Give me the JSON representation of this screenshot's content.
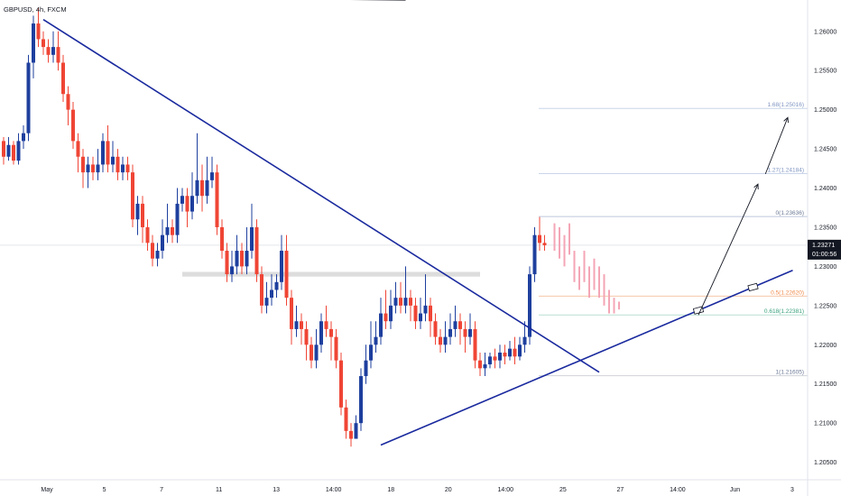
{
  "symbol_label": "GBPUSD, 4h, FXCM",
  "colors": {
    "bull": "#1e3f9e",
    "bear": "#ef4535",
    "projection": "#f4a6b6",
    "trendline": "#1a2a9e",
    "fib_0": "#bfc8dd",
    "fib_0_5": "#f7c7a9",
    "fib_0_618": "#b8e0d0",
    "fib_1": "#cfd3da",
    "fib_1_27": "#c9d5ea",
    "fib_1_68": "#c9d5ea",
    "price_tag": "#131722",
    "zone": "#d9d9d9"
  },
  "chart_data": {
    "type": "candlestick",
    "interval": "4h",
    "x_ticks": [
      "May",
      "5",
      "7",
      "11",
      "13",
      "14:00",
      "18",
      "20",
      "14:00",
      "25",
      "27",
      "14:00",
      "Jun",
      "3"
    ],
    "y_ticks": [
      "1.26000",
      "1.25500",
      "1.25000",
      "1.24500",
      "1.24000",
      "1.23500",
      "1.23000",
      "1.22500",
      "1.22000",
      "1.21500",
      "1.21000",
      "1.20500"
    ],
    "ylim": [
      1.203,
      1.264
    ],
    "last_price": "1.23271",
    "countdown": "01:00:56",
    "candles": [
      [
        1.246,
        1.244,
        1.2465,
        1.243
      ],
      [
        1.244,
        1.2455,
        1.2465,
        1.2435
      ],
      [
        1.2455,
        1.2435,
        1.246,
        1.243
      ],
      [
        1.2435,
        1.246,
        1.247,
        1.243
      ],
      [
        1.246,
        1.247,
        1.248,
        1.245
      ],
      [
        1.247,
        1.256,
        1.257,
        1.246
      ],
      [
        1.256,
        1.261,
        1.262,
        1.254
      ],
      [
        1.261,
        1.259,
        1.263,
        1.258
      ],
      [
        1.259,
        1.258,
        1.26,
        1.257
      ],
      [
        1.258,
        1.257,
        1.259,
        1.256
      ],
      [
        1.257,
        1.258,
        1.26,
        1.256
      ],
      [
        1.258,
        1.256,
        1.26,
        1.255
      ],
      [
        1.256,
        1.252,
        1.257,
        1.251
      ],
      [
        1.252,
        1.25,
        1.253,
        1.248
      ],
      [
        1.25,
        1.246,
        1.251,
        1.245
      ],
      [
        1.246,
        1.244,
        1.247,
        1.242
      ],
      [
        1.244,
        1.242,
        1.245,
        1.24
      ],
      [
        1.242,
        1.243,
        1.244,
        1.24
      ],
      [
        1.243,
        1.242,
        1.244,
        1.241
      ],
      [
        1.242,
        1.243,
        1.245,
        1.241
      ],
      [
        1.243,
        1.246,
        1.247,
        1.242
      ],
      [
        1.246,
        1.243,
        1.248,
        1.242
      ],
      [
        1.243,
        1.244,
        1.246,
        1.242
      ],
      [
        1.244,
        1.242,
        1.245,
        1.241
      ],
      [
        1.242,
        1.243,
        1.244,
        1.241
      ],
      [
        1.243,
        1.242,
        1.244,
        1.241
      ],
      [
        1.242,
        1.236,
        1.243,
        1.235
      ],
      [
        1.236,
        1.238,
        1.239,
        1.234
      ],
      [
        1.238,
        1.235,
        1.239,
        1.233
      ],
      [
        1.235,
        1.233,
        1.236,
        1.232
      ],
      [
        1.233,
        1.231,
        1.234,
        1.23
      ],
      [
        1.231,
        1.232,
        1.233,
        1.23
      ],
      [
        1.232,
        1.234,
        1.236,
        1.231
      ],
      [
        1.234,
        1.235,
        1.238,
        1.233
      ],
      [
        1.235,
        1.234,
        1.236,
        1.233
      ],
      [
        1.234,
        1.238,
        1.24,
        1.233
      ],
      [
        1.238,
        1.239,
        1.24,
        1.237
      ],
      [
        1.239,
        1.237,
        1.24,
        1.235
      ],
      [
        1.237,
        1.239,
        1.242,
        1.236
      ],
      [
        1.239,
        1.241,
        1.247,
        1.238
      ],
      [
        1.241,
        1.239,
        1.243,
        1.237
      ],
      [
        1.239,
        1.241,
        1.244,
        1.238
      ],
      [
        1.241,
        1.242,
        1.244,
        1.24
      ],
      [
        1.242,
        1.235,
        1.243,
        1.234
      ],
      [
        1.235,
        1.232,
        1.236,
        1.231
      ],
      [
        1.232,
        1.229,
        1.233,
        1.228
      ],
      [
        1.229,
        1.23,
        1.232,
        1.228
      ],
      [
        1.23,
        1.232,
        1.234,
        1.229
      ],
      [
        1.232,
        1.23,
        1.233,
        1.229
      ],
      [
        1.23,
        1.232,
        1.235,
        1.229
      ],
      [
        1.232,
        1.235,
        1.238,
        1.231
      ],
      [
        1.235,
        1.229,
        1.236,
        1.228
      ],
      [
        1.229,
        1.225,
        1.23,
        1.224
      ],
      [
        1.225,
        1.226,
        1.228,
        1.224
      ],
      [
        1.226,
        1.227,
        1.229,
        1.225
      ],
      [
        1.227,
        1.228,
        1.229,
        1.226
      ],
      [
        1.228,
        1.232,
        1.234,
        1.227
      ],
      [
        1.232,
        1.226,
        1.234,
        1.225
      ],
      [
        1.226,
        1.222,
        1.227,
        1.22
      ],
      [
        1.222,
        1.223,
        1.225,
        1.221
      ],
      [
        1.223,
        1.222,
        1.224,
        1.22
      ],
      [
        1.222,
        1.22,
        1.223,
        1.218
      ],
      [
        1.22,
        1.218,
        1.221,
        1.217
      ],
      [
        1.218,
        1.22,
        1.222,
        1.217
      ],
      [
        1.22,
        1.223,
        1.224,
        1.219
      ],
      [
        1.223,
        1.222,
        1.225,
        1.221
      ],
      [
        1.222,
        1.221,
        1.223,
        1.218
      ],
      [
        1.221,
        1.218,
        1.222,
        1.217
      ],
      [
        1.218,
        1.212,
        1.219,
        1.211
      ],
      [
        1.212,
        1.209,
        1.213,
        1.208
      ],
      [
        1.209,
        1.208,
        1.21,
        1.207
      ],
      [
        1.208,
        1.21,
        1.211,
        1.208
      ],
      [
        1.21,
        1.216,
        1.217,
        1.209
      ],
      [
        1.216,
        1.218,
        1.22,
        1.215
      ],
      [
        1.218,
        1.22,
        1.223,
        1.217
      ],
      [
        1.22,
        1.221,
        1.223,
        1.219
      ],
      [
        1.221,
        1.224,
        1.226,
        1.22
      ],
      [
        1.224,
        1.223,
        1.227,
        1.222
      ],
      [
        1.223,
        1.225,
        1.227,
        1.222
      ],
      [
        1.225,
        1.226,
        1.228,
        1.224
      ],
      [
        1.226,
        1.225,
        1.228,
        1.224
      ],
      [
        1.225,
        1.226,
        1.23,
        1.224
      ],
      [
        1.226,
        1.225,
        1.227,
        1.223
      ],
      [
        1.225,
        1.223,
        1.226,
        1.222
      ],
      [
        1.223,
        1.224,
        1.226,
        1.222
      ],
      [
        1.224,
        1.225,
        1.229,
        1.223
      ],
      [
        1.225,
        1.223,
        1.226,
        1.221
      ],
      [
        1.223,
        1.221,
        1.224,
        1.22
      ],
      [
        1.221,
        1.22,
        1.222,
        1.219
      ],
      [
        1.22,
        1.221,
        1.223,
        1.219
      ],
      [
        1.221,
        1.222,
        1.224,
        1.22
      ],
      [
        1.222,
        1.223,
        1.225,
        1.221
      ],
      [
        1.223,
        1.222,
        1.224,
        1.22
      ],
      [
        1.222,
        1.221,
        1.223,
        1.219
      ],
      [
        1.221,
        1.222,
        1.224,
        1.22
      ],
      [
        1.222,
        1.218,
        1.223,
        1.217
      ],
      [
        1.218,
        1.217,
        1.219,
        1.216
      ],
      [
        1.217,
        1.2175,
        1.219,
        1.216
      ],
      [
        1.2175,
        1.2185,
        1.219,
        1.217
      ],
      [
        1.2185,
        1.218,
        1.2195,
        1.217
      ],
      [
        1.218,
        1.219,
        1.22,
        1.217
      ],
      [
        1.219,
        1.2185,
        1.22,
        1.2175
      ],
      [
        1.2185,
        1.2195,
        1.2205,
        1.218
      ],
      [
        1.2195,
        1.2185,
        1.221,
        1.2175
      ],
      [
        1.2185,
        1.22,
        1.221,
        1.218
      ],
      [
        1.22,
        1.221,
        1.223,
        1.219
      ],
      [
        1.221,
        1.229,
        1.23,
        1.22
      ],
      [
        1.229,
        1.234,
        1.235,
        1.228
      ],
      [
        1.234,
        1.233,
        1.2363,
        1.232
      ],
      [
        1.233,
        1.2327,
        1.234,
        1.232
      ]
    ],
    "projection": [
      [
        1.2355,
        1.232
      ],
      [
        1.235,
        1.231
      ],
      [
        1.234,
        1.23
      ],
      [
        1.2355,
        1.2315
      ],
      [
        1.232,
        1.228
      ],
      [
        1.23,
        1.227
      ],
      [
        1.232,
        1.228
      ],
      [
        1.23,
        1.226
      ],
      [
        1.231,
        1.227
      ],
      [
        1.23,
        1.226
      ],
      [
        1.229,
        1.225
      ],
      [
        1.227,
        1.224
      ],
      [
        1.226,
        1.224
      ],
      [
        1.2255,
        1.2245
      ]
    ],
    "trendlines": [
      {
        "from": [
          1.2615,
          8
        ],
        "to": [
          1.2165,
          120
        ]
      },
      {
        "from": [
          1.2072,
          76
        ],
        "to": [
          1.2295,
          159
        ]
      },
      {
        "from": [
          1.2645,
          0
        ],
        "to": [
          1.264,
          81
        ]
      }
    ],
    "zone": {
      "from_bar": 36,
      "to_bar": 96,
      "top": 1.2293,
      "bottom": 1.2287
    },
    "fib_levels": [
      {
        "label": "0(1.23636)",
        "value": 1.23636
      },
      {
        "label": "0.5(1.22620)",
        "value": 1.2262
      },
      {
        "label": "0.618(1.22381)",
        "value": 1.22381
      },
      {
        "label": "1(1.21605)",
        "value": 1.21605
      },
      {
        "label": "1.27(1.24184)",
        "value": 1.24184
      },
      {
        "label": "1.68(1.25016)",
        "value": 1.25016
      }
    ]
  }
}
